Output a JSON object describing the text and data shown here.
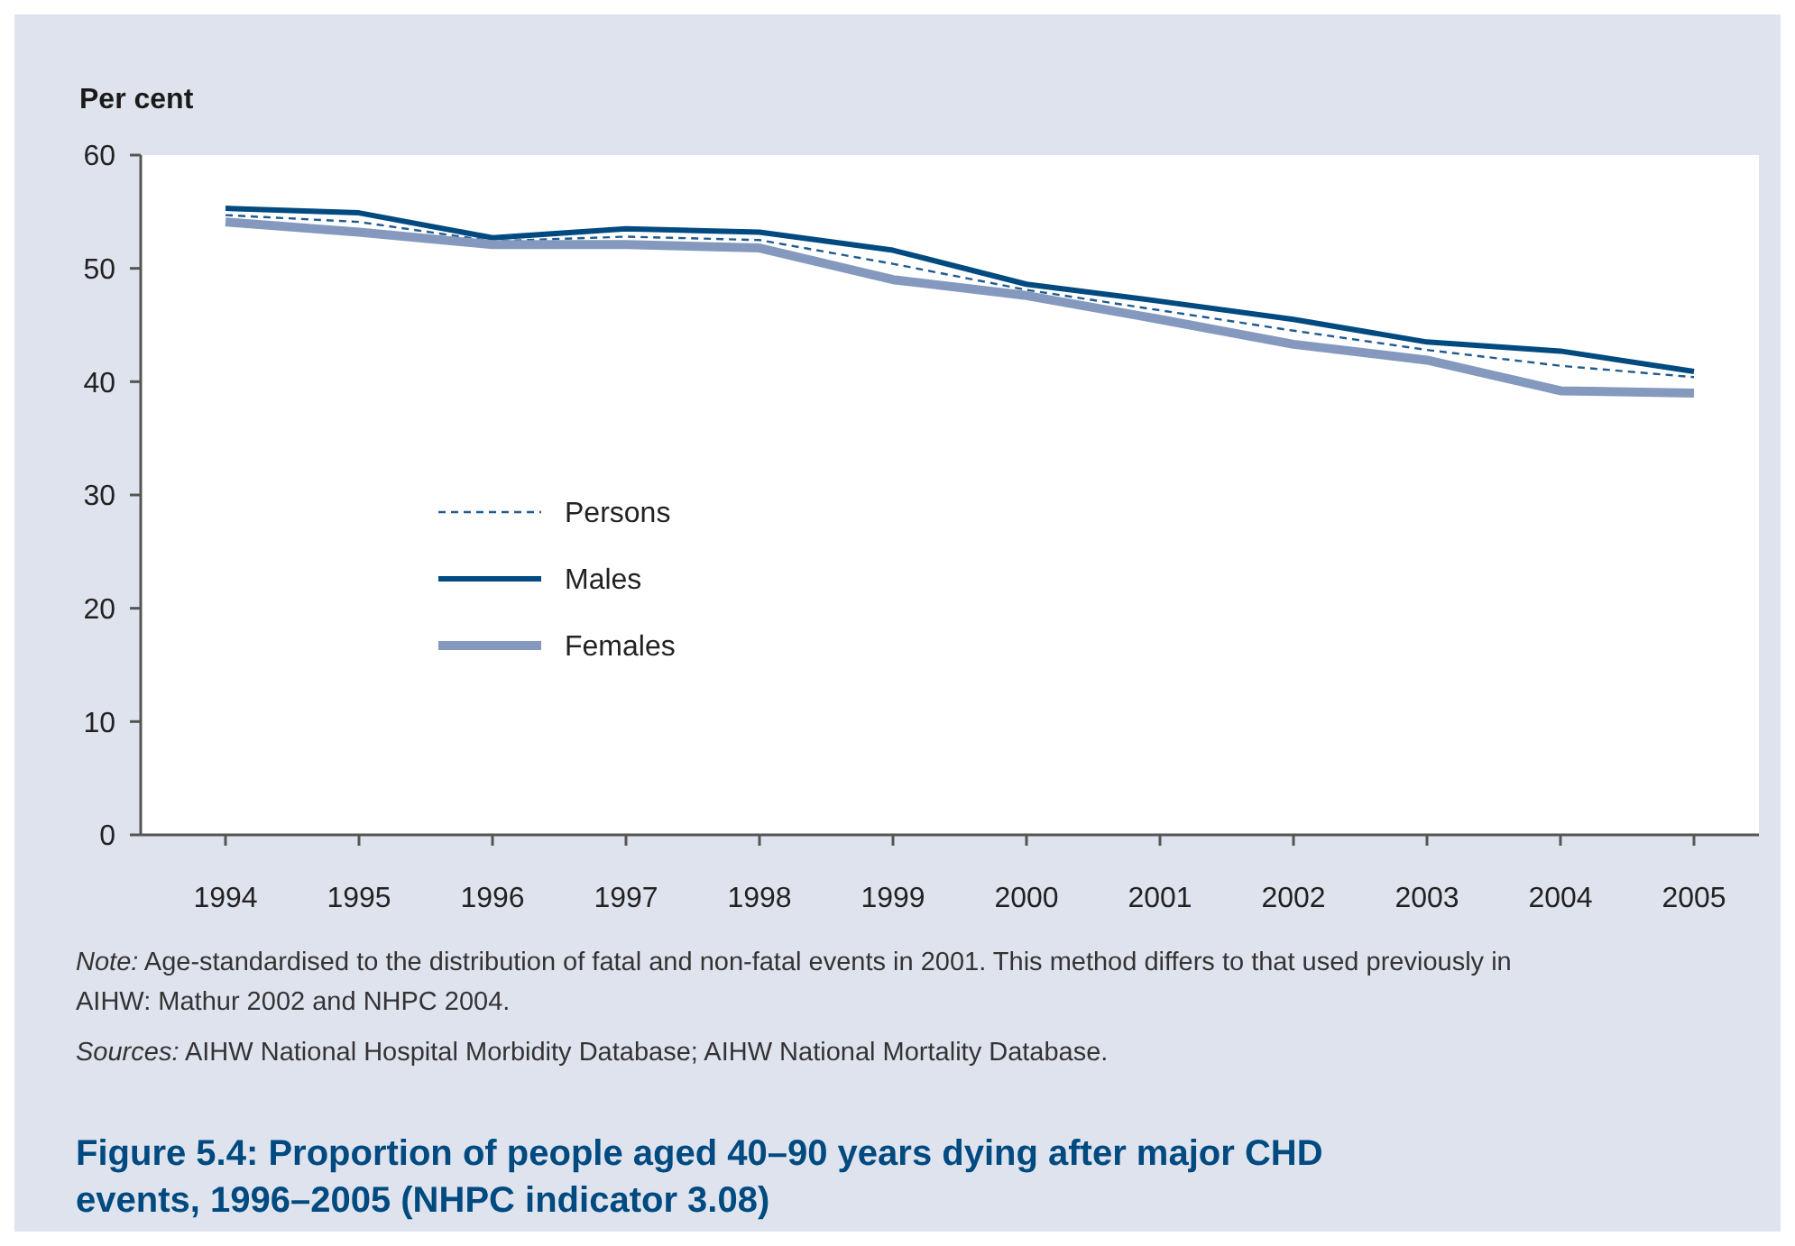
{
  "chart_data": {
    "type": "line",
    "title": "Figure 5.4: Proportion of people aged 40–90 years dying after major CHD events, 1996–2005 (NHPC indicator 3.08)",
    "ylabel": "Per cent",
    "categories": [
      "1994",
      "1995",
      "1996",
      "1997",
      "1998",
      "1999",
      "2000",
      "2001",
      "2002",
      "2003",
      "2004",
      "2005"
    ],
    "series": [
      {
        "name": "Persons",
        "color": "#1f5b8e",
        "line_style": "dashed",
        "values": [
          54.7,
          54.1,
          52.4,
          52.8,
          52.5,
          50.4,
          48.1,
          46.3,
          44.5,
          42.8,
          41.4,
          40.4
        ]
      },
      {
        "name": "Males",
        "color": "#004a80",
        "line_style": "solid",
        "values": [
          55.3,
          54.9,
          52.7,
          53.5,
          53.2,
          51.6,
          48.6,
          47.1,
          45.5,
          43.5,
          42.7,
          40.9
        ]
      },
      {
        "name": "Females",
        "color": "#8599bf",
        "line_style": "solid",
        "values": [
          54.1,
          53.2,
          52.1,
          52.1,
          51.8,
          49.0,
          47.6,
          45.5,
          43.3,
          41.9,
          39.2,
          39.0
        ]
      }
    ],
    "ylim": [
      0,
      60
    ],
    "yticks": [
      0,
      10,
      20,
      30,
      40,
      50,
      60
    ],
    "grid": false,
    "legend": "left",
    "marker": "none",
    "annotations": [
      "Note: Age-standardised to the distribution of fatal and non-fatal events in 2001. This method differs to that used previously in AIHW: Mathur 2002 and NHPC 2004.",
      "Sources: AIHW National Hospital Morbidity Database; AIHW National Mortality Database."
    ]
  }
}
